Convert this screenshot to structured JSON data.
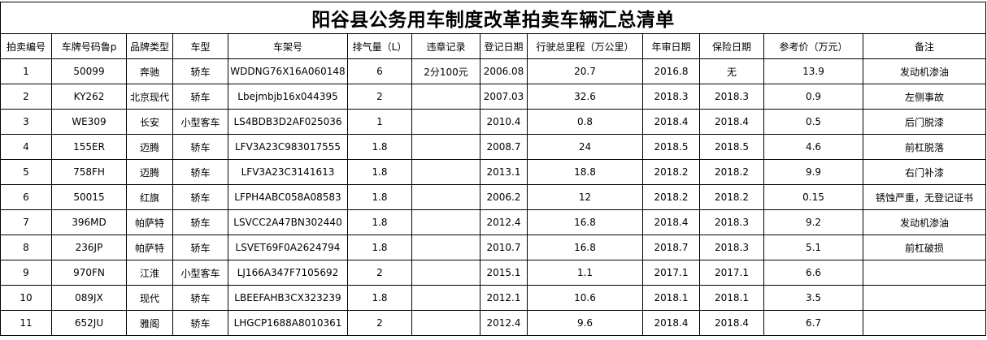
{
  "title": "阳谷县公务用车制度改革拍卖车辆汇总清单",
  "headers": [
    "拍卖编号",
    "车牌号码鲁p",
    "品牌类型",
    "车型",
    "车架号",
    "排气量（L）",
    "违章记录",
    "登记日期",
    "行驶总里程（万公里）",
    "年审日期",
    "保险日期",
    "参考价（万元）",
    "备注"
  ],
  "rows": [
    [
      "1",
      "50099",
      "奔驰",
      "轿车",
      "WDDNG76X16A060148",
      "6",
      "2分100元",
      "2006.08",
      "20.7",
      "2016.8",
      "无",
      "13.9",
      "发动机渗油"
    ],
    [
      "2",
      "KY262",
      "北京现代",
      "轿车",
      "Lbejmbjb16x044395",
      "2",
      "",
      "2007.03",
      "32.6",
      "2018.3",
      "2018.3",
      "0.9",
      "左侧事故"
    ],
    [
      "3",
      "WE309",
      "长安",
      "小型客车",
      "LS4BDB3D2AF025036",
      "1",
      "",
      "2010.4",
      "0.8",
      "2018.4",
      "2018.4",
      "0.5",
      "后门脱漆"
    ],
    [
      "4",
      "155ER",
      "迈腾",
      "轿车",
      "LFV3A23C983017555",
      "1.8",
      "",
      "2008.7",
      "24",
      "2018.5",
      "2018.5",
      "4.6",
      "前杠脱落"
    ],
    [
      "5",
      "758FH",
      "迈腾",
      "轿车",
      "LFV3A23C3141613",
      "1.8",
      "",
      "2013.1",
      "18.8",
      "2018.2",
      "2018.2",
      "9.9",
      "右门补漆"
    ],
    [
      "6",
      "50015",
      "红旗",
      "轿车",
      "LFPH4ABC058A08583",
      "1.8",
      "",
      "2006.2",
      "12",
      "2018.2",
      "2018.2",
      "0.15",
      "锈蚀严重，无登记证书"
    ],
    [
      "7",
      "396MD",
      "帕萨特",
      "轿车",
      "LSVCC2A47BN302440",
      "1.8",
      "",
      "2012.4",
      "16.8",
      "2018.4",
      "2018.3",
      "9.2",
      "发动机渗油"
    ],
    [
      "8",
      "236JP",
      "帕萨特",
      "轿车",
      "LSVET69F0A2624794",
      "1.8",
      "",
      "2010.7",
      "16.8",
      "2018.7",
      "2018.3",
      "5.1",
      "前杠破损"
    ],
    [
      "9",
      "970FN",
      "江淮",
      "小型客车",
      "LJ166A347F7105692",
      "2",
      "",
      "2015.1",
      "1.1",
      "2017.1",
      "2017.1",
      "6.6",
      ""
    ],
    [
      "10",
      "089JX",
      "现代",
      "轿车",
      "LBEEFAHB3CX323239",
      "1.8",
      "",
      "2012.1",
      "10.6",
      "2018.1",
      "2018.1",
      "3.5",
      ""
    ],
    [
      "11",
      "652JU",
      "雅阁",
      "轿车",
      "LHGCP1688A8010361",
      "2",
      "",
      "2012.4",
      "9.6",
      "2018.4",
      "2018.4",
      "6.7",
      ""
    ]
  ]
}
